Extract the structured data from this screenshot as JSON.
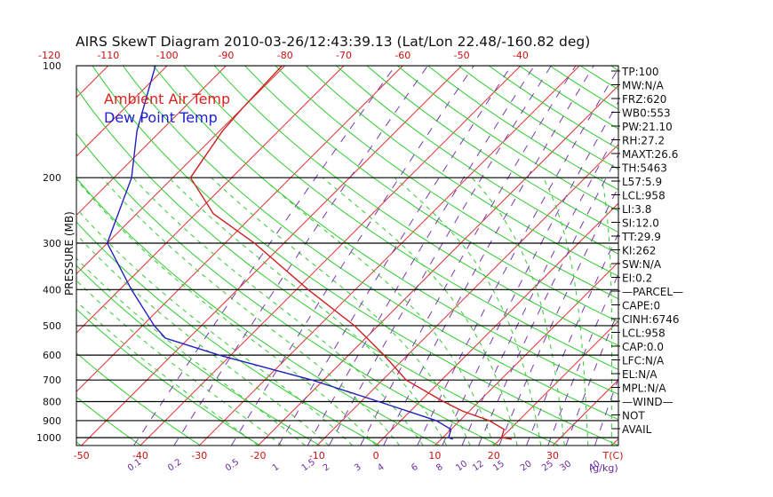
{
  "chart_data": {
    "type": "line",
    "title": "AIRS SkewT Diagram 2010-03-26/12:43:39.13 (Lat/Lon 22.48/-160.82 deg)",
    "ylabel": "PRESSURE (MB)",
    "xlabel_bottom_unit": "T(C)",
    "mixing_ratio_unit": "(g/kg)",
    "legend": [
      {
        "label": "Ambient Air Temp",
        "color": "#e02020"
      },
      {
        "label": "Dew Point Temp",
        "color": "#2020d0"
      }
    ],
    "pressure_levels": [
      100,
      200,
      300,
      400,
      500,
      600,
      700,
      800,
      900,
      1000
    ],
    "pressure_range": [
      100,
      1050
    ],
    "bottom_temp_ticks": [
      -50,
      -40,
      -30,
      -20,
      -10,
      0,
      10,
      20,
      30
    ],
    "top_temp_ticks": [
      -120,
      -110,
      -100,
      -90,
      -80,
      -70,
      -60,
      -50,
      -40
    ],
    "mixing_ratio_labels": [
      "0.1",
      "0.2",
      "0.5",
      "1",
      "1.5",
      "2",
      "3",
      "4",
      "6",
      "8",
      "10",
      "12",
      "15",
      "20",
      "25",
      "30",
      "40"
    ],
    "series": [
      {
        "name": "Ambient Air Temp",
        "color": "#cc2020",
        "points": [
          [
            100,
            -80.5
          ],
          [
            130,
            -80
          ],
          [
            150,
            -79.5
          ],
          [
            200,
            -77
          ],
          [
            250,
            -67
          ],
          [
            300,
            -55
          ],
          [
            400,
            -38
          ],
          [
            500,
            -24
          ],
          [
            600,
            -14
          ],
          [
            700,
            -6
          ],
          [
            800,
            4
          ],
          [
            850,
            9
          ],
          [
            900,
            15
          ],
          [
            950,
            19
          ],
          [
            1000,
            20
          ],
          [
            1010,
            22
          ]
        ]
      },
      {
        "name": "Dew Point Temp",
        "color": "#2020c0",
        "points": [
          [
            100,
            -102
          ],
          [
            150,
            -94
          ],
          [
            200,
            -87
          ],
          [
            300,
            -80
          ],
          [
            400,
            -68
          ],
          [
            500,
            -58
          ],
          [
            540,
            -54
          ],
          [
            600,
            -42
          ],
          [
            700,
            -22
          ],
          [
            800,
            -7
          ],
          [
            900,
            6
          ],
          [
            950,
            10
          ],
          [
            1000,
            11
          ],
          [
            1010,
            12
          ]
        ]
      }
    ],
    "side_panel": [
      "TP:100",
      "MW:N/A",
      "FRZ:620",
      "WB0:553",
      "PW:21.10",
      "RH:27.2",
      "MAXT:26.6",
      "TH:5463",
      "L57:5.9",
      "LCL:958",
      "LI:3.8",
      "SI:12.0",
      "TT:29.9",
      "KI:262",
      "SW:N/A",
      "EI:0.2",
      "—PARCEL—",
      "CAPE:0",
      "CINH:6746",
      "LCL:958",
      "CAP:0.0",
      "LFC:N/A",
      "EL:N/A",
      "MPL:N/A",
      "—WIND—",
      "NOT",
      "AVAIL"
    ]
  },
  "colors": {
    "isotherm": "#e03030",
    "dry_adiabat": "#30cc30",
    "moist_adiabat": "#30cc30",
    "mixing_ratio": "#7a3ab0",
    "isobar": "#000000",
    "axis_text": "#cc1010",
    "mixing_text": "#6a2aa0"
  }
}
